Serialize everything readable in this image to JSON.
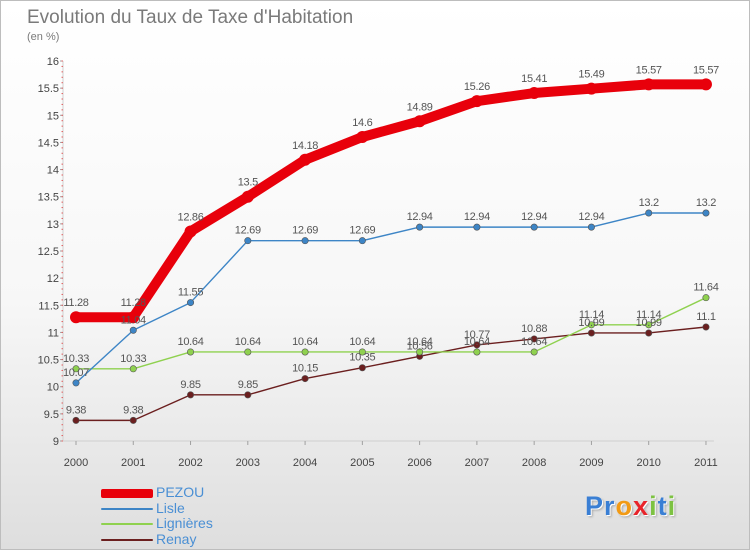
{
  "header": {
    "title": "Evolution du Taux de Taxe d'Habitation",
    "subtitle": "(en %)"
  },
  "chart_data": {
    "type": "line",
    "title": "Evolution du Taux de Taxe d'Habitation",
    "ylabel": "(en %)",
    "xlabel": "",
    "categories": [
      "2000",
      "2001",
      "2002",
      "2003",
      "2004",
      "2005",
      "2006",
      "2007",
      "2008",
      "2009",
      "2010",
      "2011"
    ],
    "ylim": [
      9,
      16
    ],
    "yticks": [
      9,
      9.5,
      10,
      10.5,
      11,
      11.5,
      12,
      12.5,
      13,
      13.5,
      14,
      14.5,
      15,
      15.5,
      16
    ],
    "ytick_labels": [
      "9",
      "9.5",
      "10",
      "10.5",
      "11",
      "11.5",
      "12",
      "12.5",
      "13",
      "13.5",
      "14",
      "14.5",
      "15",
      "15.5",
      "16"
    ],
    "grid": false,
    "legend_position": "bottom-left",
    "series": [
      {
        "name": "PEZOU",
        "color": "#e8000b",
        "emphasis": true,
        "values": [
          11.28,
          11.28,
          12.86,
          13.5,
          14.18,
          14.6,
          14.89,
          15.26,
          15.41,
          15.49,
          15.57,
          15.57
        ],
        "labels": [
          "11.28",
          "11.28",
          "12.86",
          "13.5",
          "14.18",
          "14.6",
          "14.89",
          "15.26",
          "15.41",
          "15.49",
          "15.57",
          "15.57"
        ]
      },
      {
        "name": "Lisle",
        "color": "#3d85c6",
        "values": [
          10.07,
          11.04,
          11.55,
          12.69,
          12.69,
          12.69,
          12.94,
          12.94,
          12.94,
          12.94,
          13.2,
          13.2
        ],
        "labels": [
          "10.07",
          "11.04",
          "11.55",
          "12.69",
          "12.69",
          "12.69",
          "12.94",
          "12.94",
          "12.94",
          "12.94",
          "13.2",
          "13.2"
        ]
      },
      {
        "name": "Lignières",
        "color": "#8fd14f",
        "values": [
          10.33,
          10.33,
          10.64,
          10.64,
          10.64,
          10.64,
          10.64,
          10.64,
          10.64,
          11.14,
          11.14,
          11.64
        ],
        "labels": [
          "10.33",
          "10.33",
          "10.64",
          "10.64",
          "10.64",
          "10.64",
          "10.64",
          "10.64",
          "10.64",
          "11.14",
          "11.14",
          "11.64"
        ]
      },
      {
        "name": "Renay",
        "color": "#6b1f1f",
        "values": [
          9.38,
          9.38,
          9.85,
          9.85,
          10.15,
          10.35,
          10.56,
          10.77,
          10.88,
          10.99,
          10.99,
          11.1
        ],
        "labels": [
          "9.38",
          "9.38",
          "9.85",
          "9.85",
          "10.15",
          "10.35",
          "10.56",
          "10.77",
          "10.88",
          "10.99",
          "10.99",
          "11.1"
        ]
      }
    ]
  },
  "legend": {
    "items": [
      {
        "label": "PEZOU",
        "color": "#e8000b"
      },
      {
        "label": "Lisle",
        "color": "#3d85c6"
      },
      {
        "label": "Lignières",
        "color": "#8fd14f"
      },
      {
        "label": "Renay",
        "color": "#6b1f1f"
      }
    ]
  },
  "logo": {
    "letters": [
      "P",
      "r",
      "o",
      "x",
      "i",
      "t",
      "i"
    ],
    "colors": [
      "#3a7fd4",
      "#3a7fd4",
      "#f29a14",
      "#e8242a",
      "#7dc242",
      "#3a7fd4",
      "#7dc242"
    ]
  }
}
